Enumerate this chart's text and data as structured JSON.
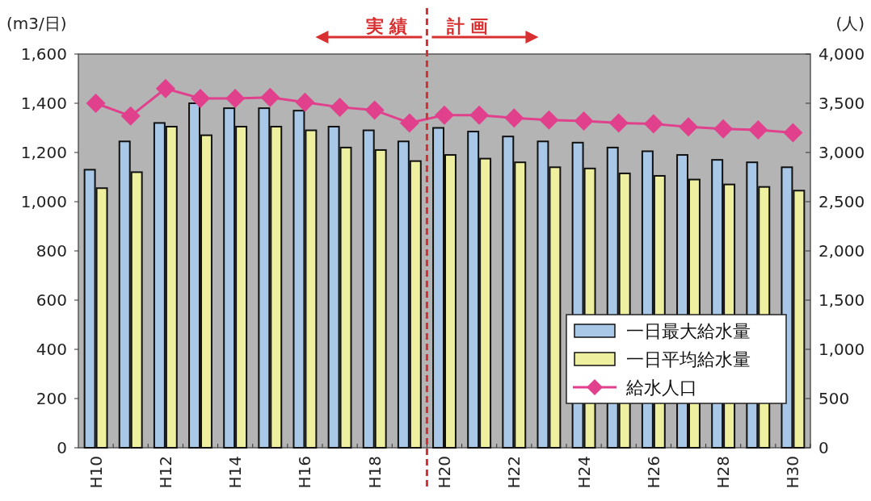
{
  "chart_data": {
    "type": "bar",
    "ylabel": "(m3/日)",
    "y2label": "(人)",
    "categories": [
      "H10",
      null,
      "H12",
      null,
      "H14",
      null,
      "H16",
      null,
      "H18",
      null,
      "H20",
      null,
      "H22",
      null,
      "H24",
      null,
      "H26",
      null,
      "H28",
      null,
      "H30"
    ],
    "series": [
      {
        "name": "一日最大給水量",
        "color": "#a9c8e8",
        "values": [
          1130,
          1245,
          1320,
          1400,
          1380,
          1380,
          1370,
          1305,
          1290,
          1245,
          1300,
          1285,
          1265,
          1245,
          1240,
          1220,
          1205,
          1190,
          1170,
          1160,
          1140
        ]
      },
      {
        "name": "一日平均給水量",
        "color": "#eef0a0",
        "values": [
          1055,
          1120,
          1305,
          1270,
          1305,
          1305,
          1290,
          1220,
          1210,
          1165,
          1190,
          1175,
          1160,
          1140,
          1135,
          1115,
          1105,
          1090,
          1070,
          1060,
          1045
        ]
      },
      {
        "name": "給水人口",
        "type": "line",
        "axis": "y2",
        "color": "#e0408c",
        "marker": "diamond",
        "values": [
          3500,
          3370,
          3650,
          3550,
          3550,
          3560,
          3510,
          3460,
          3430,
          3300,
          3380,
          3380,
          3350,
          3330,
          3320,
          3300,
          3290,
          3260,
          3240,
          3230,
          3200
        ]
      }
    ],
    "ylim": [
      0,
      1600
    ],
    "yticks": [
      {
        "value": 0,
        "label": "0"
      },
      {
        "value": 200,
        "label": "200"
      },
      {
        "value": 400,
        "label": "400"
      },
      {
        "value": 600,
        "label": "600"
      },
      {
        "value": 800,
        "label": "800"
      },
      {
        "value": 1000,
        "label": "1,000"
      },
      {
        "value": 1200,
        "label": "1,200"
      },
      {
        "value": 1400,
        "label": "1,400"
      },
      {
        "value": 1600,
        "label": "1,600"
      }
    ],
    "y2lim": [
      0,
      4000
    ],
    "y2ticks": [
      {
        "value": 0,
        "label": "0"
      },
      {
        "value": 500,
        "label": "500"
      },
      {
        "value": 1000,
        "label": "1,000"
      },
      {
        "value": 1500,
        "label": "1,500"
      },
      {
        "value": 2000,
        "label": "2,000"
      },
      {
        "value": 2500,
        "label": "2,500"
      },
      {
        "value": 3000,
        "label": "3,000"
      },
      {
        "value": 3500,
        "label": "3,500"
      },
      {
        "value": 4000,
        "label": "4,000"
      }
    ],
    "annotations": [
      "実 績",
      "計 画"
    ],
    "legend": "bottom right",
    "grid": false
  }
}
